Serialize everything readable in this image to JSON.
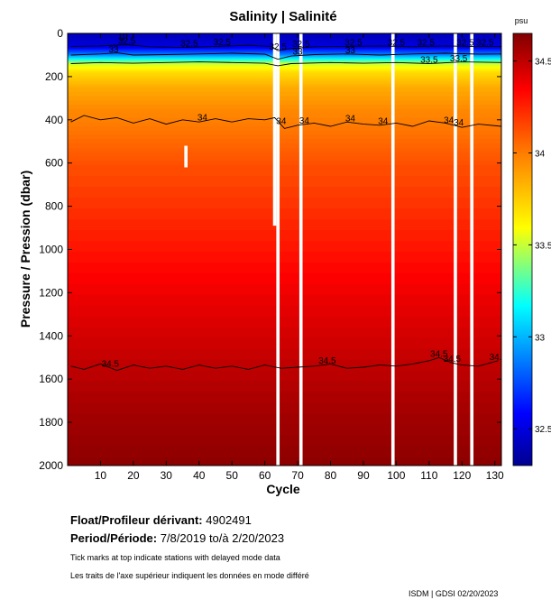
{
  "chart_data": {
    "type": "heatmap",
    "title": "Salinity | Salinité",
    "xlabel": "Cycle",
    "ylabel": "Pressure / Pression (dbar)",
    "xlim": [
      0,
      132
    ],
    "ylim": [
      2000,
      0
    ],
    "x_ticks": [
      10,
      20,
      30,
      40,
      50,
      60,
      70,
      80,
      90,
      100,
      110,
      120,
      130
    ],
    "y_ticks": [
      0,
      200,
      400,
      600,
      800,
      1000,
      1200,
      1400,
      1600,
      1800,
      2000
    ],
    "colorbar": {
      "unit": "psu",
      "range": [
        32.3,
        34.65
      ],
      "ticks": [
        32.5,
        33,
        33.5,
        34,
        34.5
      ],
      "tick_labels": [
        "32.5",
        "33",
        "33.5",
        "34",
        "34.5"
      ],
      "colormap": [
        "#00008f",
        "#0000ff",
        "#00ffff",
        "#ffff00",
        "#ff7f00",
        "#ff0000",
        "#800000"
      ]
    },
    "salinity_profile": {
      "pressure": [
        0,
        60,
        100,
        140,
        180,
        250,
        350,
        420,
        600,
        900,
        1200,
        1400,
        1550,
        1700,
        2000
      ],
      "salinity": [
        32.4,
        32.5,
        32.9,
        33.5,
        33.7,
        33.85,
        33.96,
        34.0,
        34.12,
        34.25,
        34.38,
        34.45,
        34.5,
        34.55,
        34.62
      ]
    },
    "contours": [
      {
        "level": "32.5",
        "label_cycles": [
          18,
          37,
          47,
          64,
          71,
          87,
          100,
          109,
          121,
          127
        ],
        "points": [
          [
            1,
            60
          ],
          [
            10,
            58
          ],
          [
            18,
            52
          ],
          [
            25,
            62
          ],
          [
            35,
            65
          ],
          [
            45,
            60
          ],
          [
            55,
            55
          ],
          [
            62,
            60
          ],
          [
            64,
            80
          ],
          [
            68,
            70
          ],
          [
            75,
            62
          ],
          [
            85,
            60
          ],
          [
            95,
            58
          ],
          [
            105,
            62
          ],
          [
            115,
            58
          ],
          [
            122,
            60
          ],
          [
            132,
            60
          ]
        ]
      },
      {
        "level": "33",
        "label_cycles": [
          14,
          70,
          86
        ],
        "points": [
          [
            1,
            100
          ],
          [
            10,
            95
          ],
          [
            15,
            90
          ],
          [
            20,
            100
          ],
          [
            30,
            98
          ],
          [
            40,
            95
          ],
          [
            50,
            92
          ],
          [
            60,
            96
          ],
          [
            64,
            120
          ],
          [
            68,
            105
          ],
          [
            75,
            98
          ],
          [
            85,
            95
          ],
          [
            95,
            100
          ],
          [
            105,
            95
          ],
          [
            115,
            92
          ],
          [
            125,
            96
          ],
          [
            132,
            95
          ]
        ]
      },
      {
        "level": "33.5",
        "label_cycles": [
          110,
          119
        ],
        "points": [
          [
            1,
            140
          ],
          [
            10,
            135
          ],
          [
            20,
            138
          ],
          [
            30,
            135
          ],
          [
            40,
            132
          ],
          [
            50,
            135
          ],
          [
            60,
            138
          ],
          [
            64,
            150
          ],
          [
            68,
            140
          ],
          [
            80,
            135
          ],
          [
            90,
            138
          ],
          [
            100,
            135
          ],
          [
            110,
            140
          ],
          [
            120,
            132
          ],
          [
            132,
            135
          ]
        ]
      },
      {
        "level": "34",
        "label_cycles": [
          41,
          65,
          72,
          86,
          96,
          116,
          119
        ],
        "points": [
          [
            1,
            410
          ],
          [
            5,
            380
          ],
          [
            10,
            400
          ],
          [
            15,
            390
          ],
          [
            20,
            415
          ],
          [
            25,
            395
          ],
          [
            30,
            420
          ],
          [
            35,
            400
          ],
          [
            40,
            410
          ],
          [
            45,
            395
          ],
          [
            50,
            410
          ],
          [
            55,
            395
          ],
          [
            60,
            400
          ],
          [
            63,
            390
          ],
          [
            66,
            440
          ],
          [
            70,
            425
          ],
          [
            75,
            415
          ],
          [
            80,
            430
          ],
          [
            85,
            410
          ],
          [
            90,
            420
          ],
          [
            95,
            425
          ],
          [
            100,
            415
          ],
          [
            105,
            430
          ],
          [
            110,
            405
          ],
          [
            115,
            415
          ],
          [
            120,
            435
          ],
          [
            125,
            420
          ],
          [
            132,
            430
          ]
        ]
      },
      {
        "level": "34.5",
        "label_cycles": [
          13,
          79,
          113,
          117,
          131
        ],
        "points": [
          [
            1,
            1540
          ],
          [
            5,
            1555
          ],
          [
            10,
            1530
          ],
          [
            15,
            1560
          ],
          [
            20,
            1535
          ],
          [
            25,
            1550
          ],
          [
            30,
            1540
          ],
          [
            35,
            1555
          ],
          [
            40,
            1535
          ],
          [
            45,
            1550
          ],
          [
            50,
            1540
          ],
          [
            55,
            1555
          ],
          [
            60,
            1535
          ],
          [
            65,
            1550
          ],
          [
            70,
            1545
          ],
          [
            75,
            1540
          ],
          [
            80,
            1530
          ],
          [
            85,
            1550
          ],
          [
            90,
            1545
          ],
          [
            95,
            1535
          ],
          [
            100,
            1540
          ],
          [
            105,
            1530
          ],
          [
            110,
            1515
          ],
          [
            113,
            1500
          ],
          [
            117,
            1525
          ],
          [
            120,
            1535
          ],
          [
            125,
            1540
          ],
          [
            131,
            1515
          ]
        ]
      }
    ],
    "missing_profiles": [
      64,
      71,
      99,
      118,
      123
    ],
    "missing_segments": [
      {
        "cycle": 36,
        "pressure_range": [
          520,
          620
        ]
      },
      {
        "cycle": 63,
        "pressure_range": [
          0,
          890
        ]
      }
    ],
    "delayed_mode_marks": [
      16,
      17,
      18
    ]
  },
  "info": {
    "float_label": "Float/Profileur dérivant:",
    "float_id": "4902491",
    "period_label": "Period/Période:",
    "period_start": "7/8/2019",
    "period_mid": "to/à",
    "period_end": "2/20/2023",
    "note_en": "Tick marks at top indicate stations with delayed mode data",
    "note_fr": "Les traits de l'axe supérieur indiquent les données en mode différé",
    "credit": "ISDM | GDSI  02/20/2023"
  }
}
